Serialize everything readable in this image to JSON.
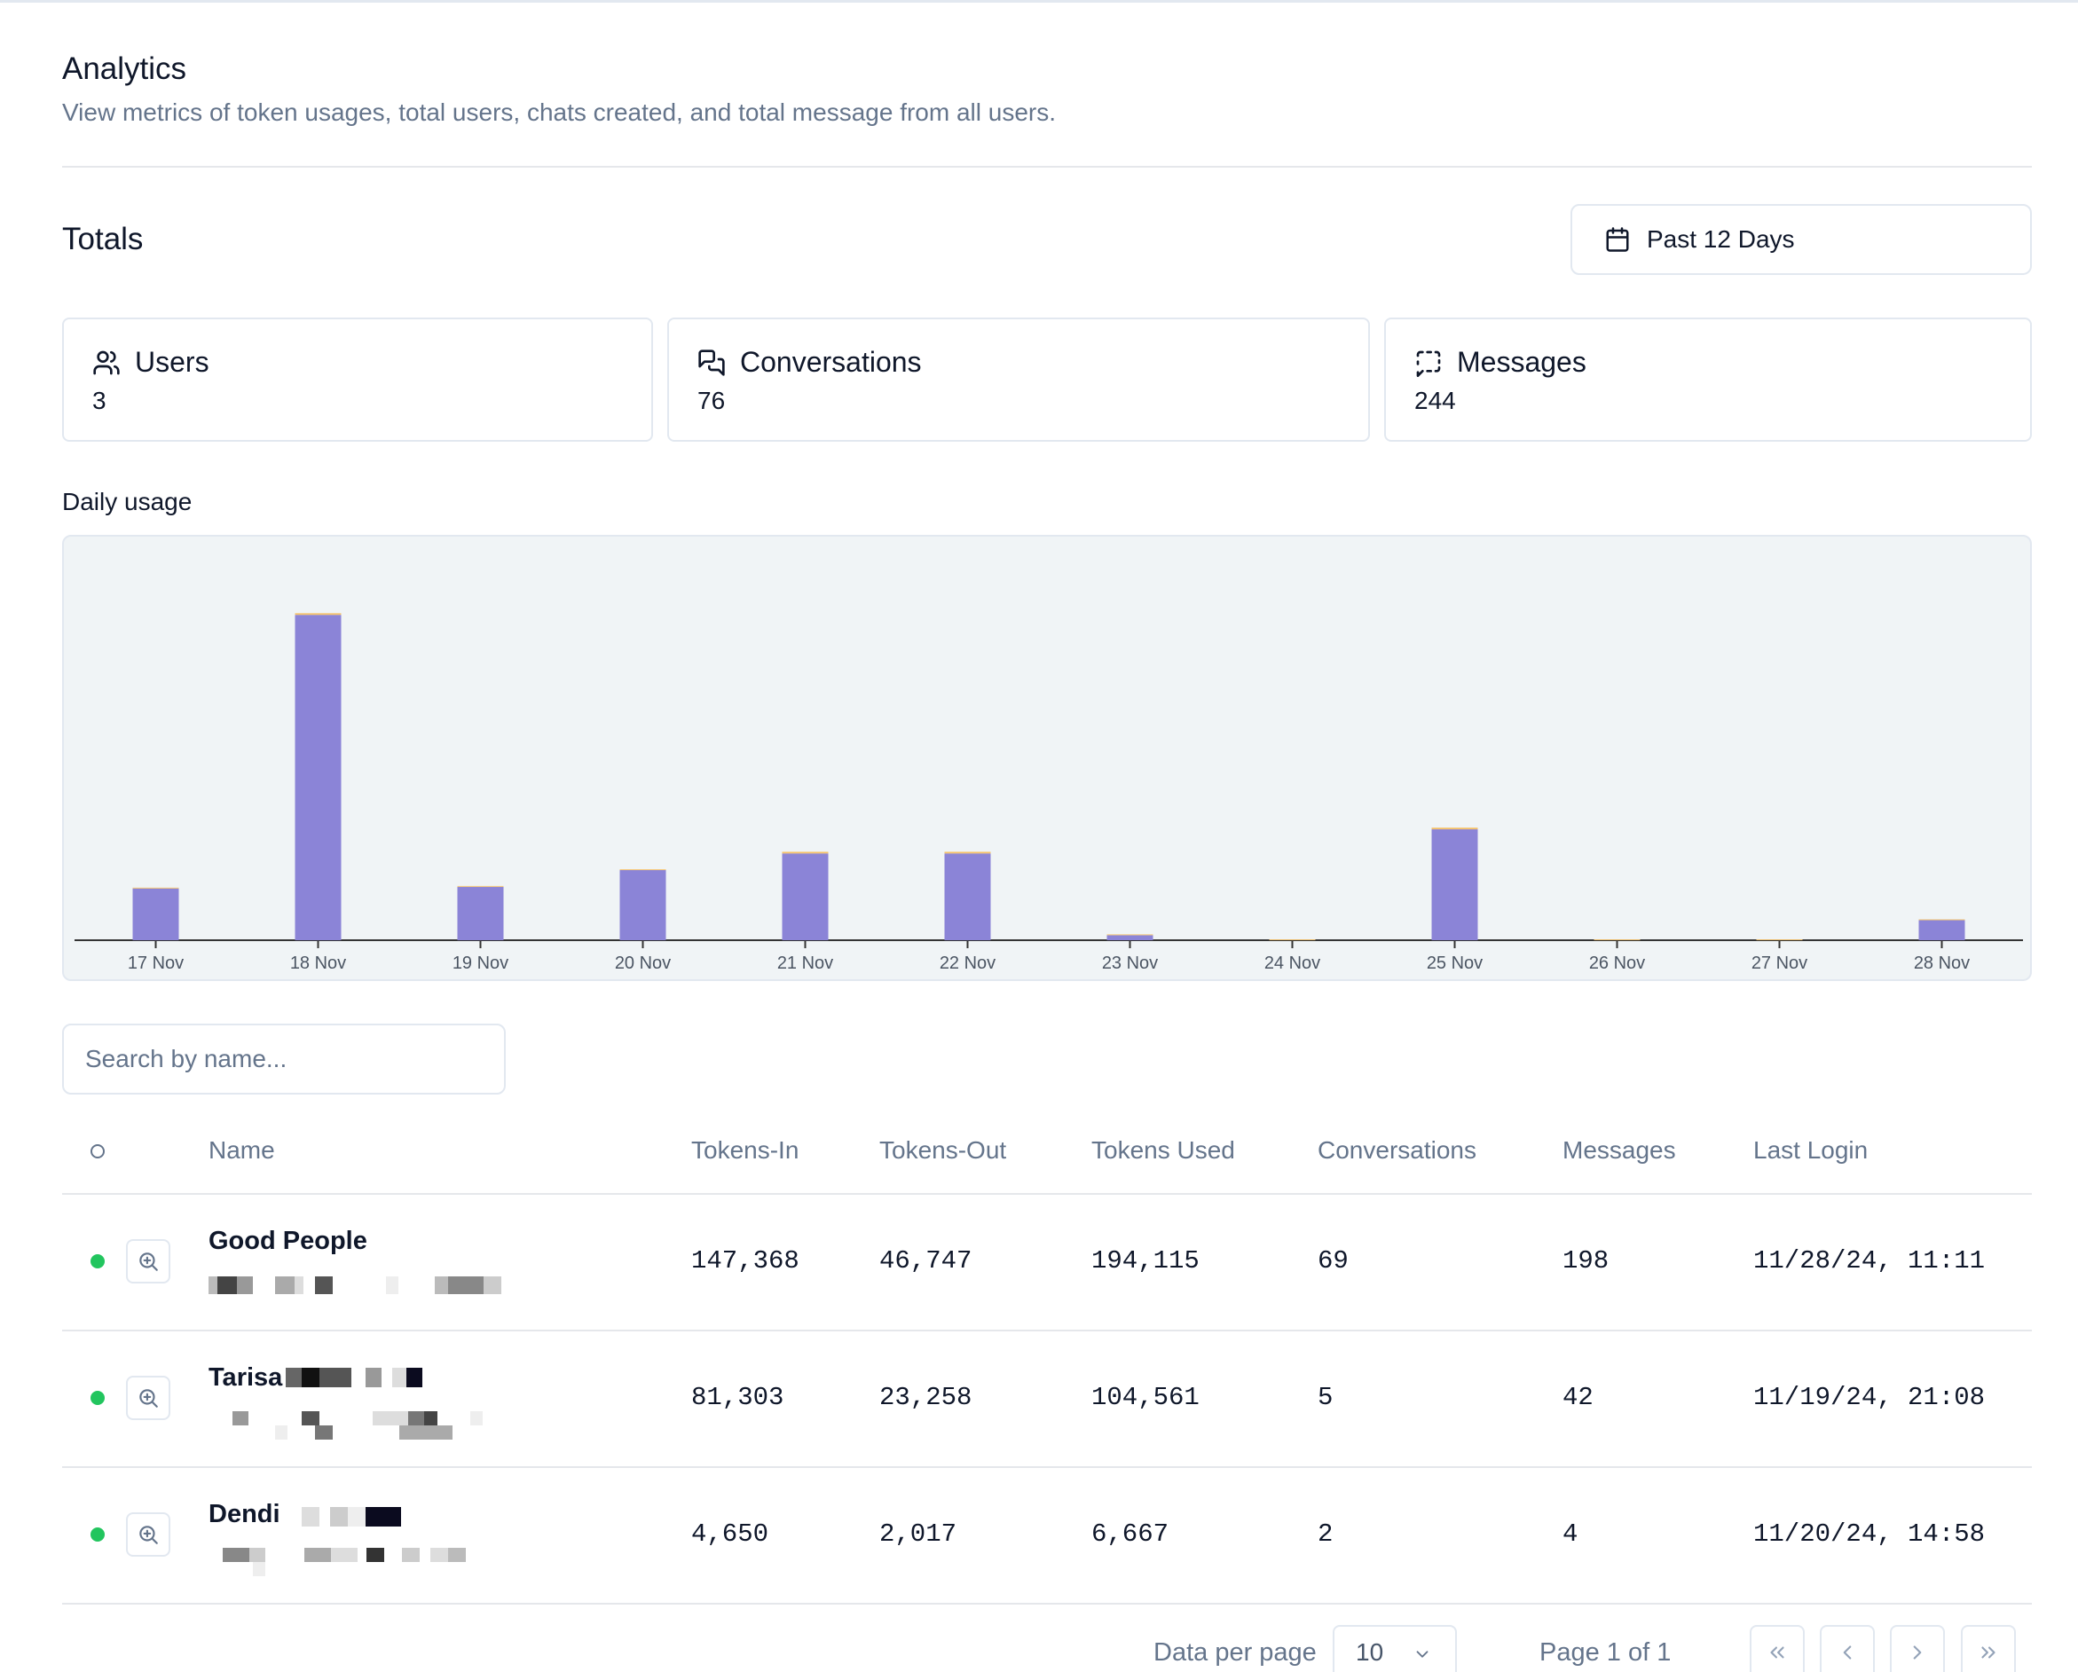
{
  "header": {
    "title": "Analytics",
    "subtitle": "View metrics of token usages, total users, chats created, and total message from all users."
  },
  "totals": {
    "title": "Totals",
    "date_range": "Past 12 Days",
    "cards": [
      {
        "label": "Users",
        "value": "3",
        "icon": "users-icon"
      },
      {
        "label": "Conversations",
        "value": "76",
        "icon": "chat-bubbles-icon"
      },
      {
        "label": "Messages",
        "value": "244",
        "icon": "message-square-dashed-icon"
      }
    ]
  },
  "daily_usage": {
    "label": "Daily usage"
  },
  "chart_data": {
    "type": "bar",
    "categories": [
      "17 Nov",
      "18 Nov",
      "19 Nov",
      "20 Nov",
      "21 Nov",
      "22 Nov",
      "23 Nov",
      "24 Nov",
      "25 Nov",
      "26 Nov",
      "27 Nov",
      "28 Nov"
    ],
    "series": [
      {
        "values": [
          62,
          390,
          64,
          84,
          104,
          104,
          6,
          0,
          133,
          0,
          0,
          24
        ],
        "color": "#8b84d7"
      },
      {
        "values": [
          1,
          2,
          1,
          1,
          2,
          2,
          1,
          1,
          2,
          1,
          1,
          1
        ],
        "color": "#f5c26b"
      }
    ],
    "stacked": true,
    "grid": false,
    "y_axis_visible": false,
    "ylim": [
      0,
      420
    ]
  },
  "search": {
    "placeholder": "Search by name..."
  },
  "table": {
    "columns": [
      "Name",
      "Tokens-In",
      "Tokens-Out",
      "Tokens Used",
      "Conversations",
      "Messages",
      "Last Login"
    ],
    "rows": [
      {
        "name": "Good People",
        "tokens_in": "147,368",
        "tokens_out": "46,747",
        "tokens_used": "194,115",
        "conversations": "69",
        "messages": "198",
        "last_login": "11/28/24, 11:11",
        "status": "online"
      },
      {
        "name": "Tarisa",
        "tokens_in": "81,303",
        "tokens_out": "23,258",
        "tokens_used": "104,561",
        "conversations": "5",
        "messages": "42",
        "last_login": "11/19/24, 21:08",
        "status": "online"
      },
      {
        "name": "Dendi",
        "tokens_in": "4,650",
        "tokens_out": "2,017",
        "tokens_used": "6,667",
        "conversations": "2",
        "messages": "4",
        "last_login": "11/20/24, 14:58",
        "status": "online"
      }
    ]
  },
  "pagination": {
    "per_page_label": "Data per page",
    "per_page_value": "10",
    "page_label": "Page 1 of 1"
  },
  "colors": {
    "bar": "#8b84d7",
    "bar_cap": "#f5c26b",
    "status_online": "#22c55e",
    "muted_text": "#64748b",
    "border": "#e2e8f0"
  }
}
